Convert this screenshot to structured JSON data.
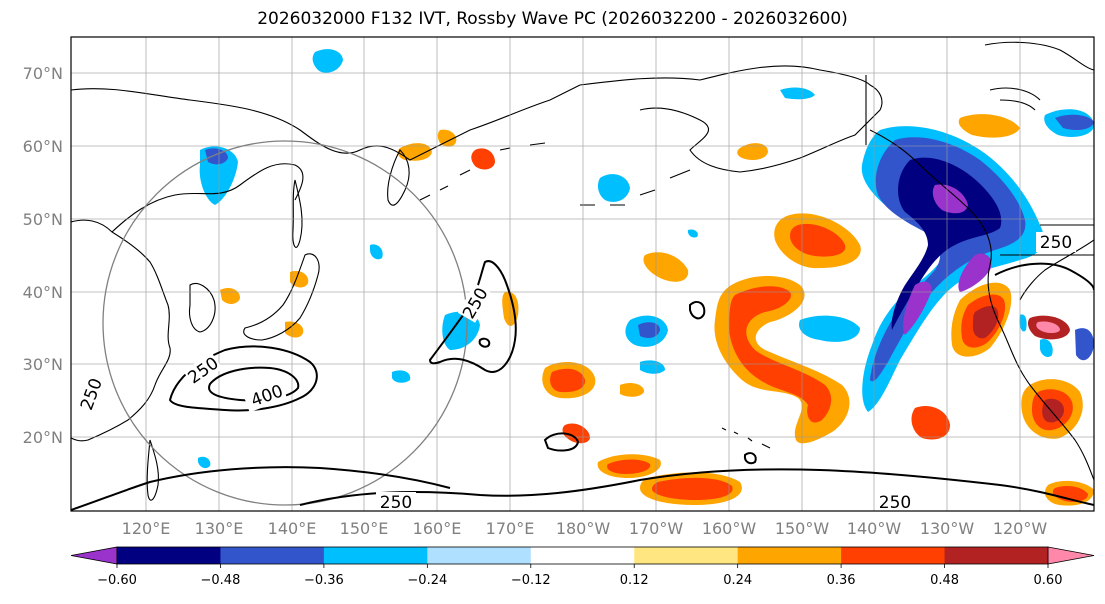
{
  "title": "2026032000 F132 IVT, Rossby Wave PC (2026032200 - 2026032600)",
  "map": {
    "lat_labels": [
      "70°N",
      "60°N",
      "50°N",
      "40°N",
      "30°N",
      "20°N"
    ],
    "lon_labels": [
      "120°E",
      "130°E",
      "140°E",
      "150°E",
      "160°E",
      "170°E",
      "180°W",
      "170°W",
      "160°W",
      "150°W",
      "140°W",
      "130°W",
      "120°W"
    ],
    "ivt_contour_labels": [
      "250",
      "250",
      "250",
      "400",
      "250",
      "250",
      "250"
    ],
    "extent": {
      "lon_min": 110,
      "lon_max": 250,
      "lat_min": 10,
      "lat_max": 75
    }
  },
  "colorbar": {
    "ticks": [
      "−0.60",
      "−0.48",
      "−0.36",
      "−0.24",
      "−0.12",
      "0.12",
      "0.24",
      "0.36",
      "0.48",
      "0.60"
    ],
    "colors": [
      "#9933cc",
      "#000080",
      "#3355cc",
      "#00bfff",
      "#b0e0ff",
      "#ffffff",
      "#ffe680",
      "#ffa500",
      "#ff4000",
      "#b22222",
      "#ff88aa"
    ],
    "extend": "both"
  }
}
